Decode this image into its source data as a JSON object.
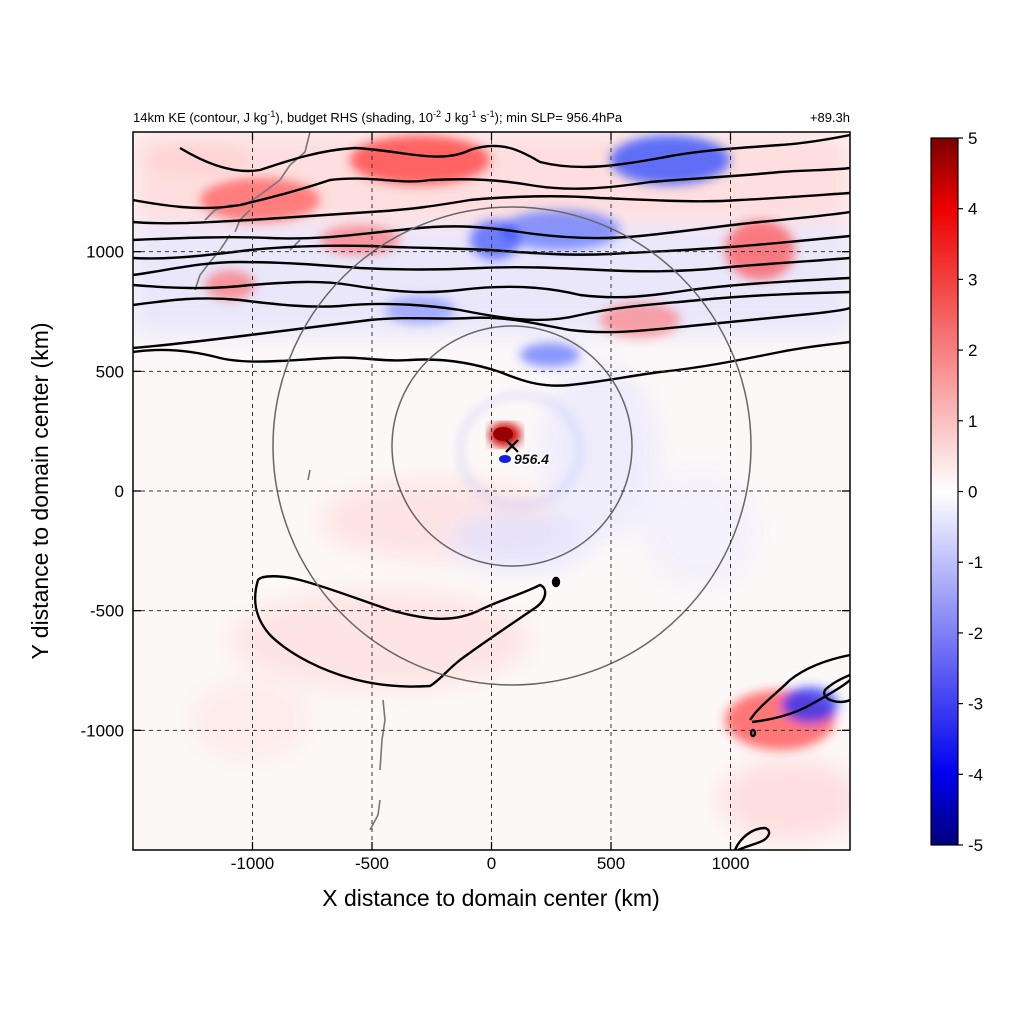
{
  "chart_data": {
    "type": "heatmap",
    "title": {
      "pre": "14km KE (contour, J kg",
      "sup1": "-1",
      "mid1": "), budget RHS (shading, 10",
      "sup2": "-2",
      "mid2": " J kg",
      "sup3": "-1",
      "mid3": " s",
      "sup4": "-1",
      "post": "); min SLP= 956.4hPa"
    },
    "time_label": "+89.3h",
    "xlabel": "X distance to domain center (km)",
    "ylabel": "Y distance to domain center (km)",
    "xlim": [
      -1500,
      1500
    ],
    "ylim": [
      -1500,
      1500
    ],
    "xticks": [
      -1000,
      -500,
      0,
      500,
      1000
    ],
    "yticks": [
      -1000,
      -500,
      0,
      500,
      1000
    ],
    "grid": true,
    "colorbar": {
      "range": [
        -5,
        5
      ],
      "ticks": [
        -5,
        -4,
        -3,
        -2,
        -1,
        0,
        1,
        2,
        3,
        4,
        5
      ],
      "colormap": [
        "#00007a",
        "#0000ff",
        "#ffffff",
        "#ff0000",
        "#7a0000"
      ],
      "placement": "right"
    },
    "storm_center": {
      "x": 90,
      "y": 190,
      "label": "956.4"
    },
    "radius_circles_km": [
      500,
      1000
    ],
    "shading_features": [
      {
        "x": 60,
        "y": 240,
        "value": 5
      },
      {
        "x": 90,
        "y": 140,
        "value": -4
      },
      {
        "x": 200,
        "y": 560,
        "value": -3
      },
      {
        "x": 0,
        "y": 1070,
        "value": -3
      },
      {
        "x": 680,
        "y": 1420,
        "value": -4
      },
      {
        "x": 1350,
        "y": -900,
        "value": -4
      },
      {
        "x": 1150,
        "y": -750,
        "value": 3
      },
      {
        "x": -400,
        "y": 1330,
        "value": 3
      },
      {
        "x": -800,
        "y": 1230,
        "value": 2.5
      },
      {
        "x": -500,
        "y": 1040,
        "value": 2
      },
      {
        "x": 1050,
        "y": 1050,
        "value": 3
      },
      {
        "x": -450,
        "y": -580,
        "value": 1
      }
    ],
    "colors": {
      "contour": "#000000",
      "coastline": "#777777",
      "range_ring": "#666666"
    }
  }
}
